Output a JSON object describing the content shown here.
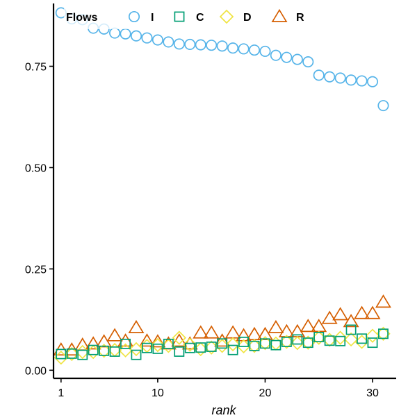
{
  "chart_data": {
    "type": "scatter",
    "xlabel": "rank",
    "ylabel": "",
    "xlim": [
      0.3,
      32.2
    ],
    "ylim": [
      -0.02,
      0.905
    ],
    "xticks": [
      1,
      10,
      20,
      30
    ],
    "yticks": [
      0.0,
      0.25,
      0.5,
      0.75
    ],
    "ytick_labels": [
      "0.00",
      "0.25",
      "0.50",
      "0.75"
    ],
    "legend": {
      "title": "Flows",
      "placement": "top-left"
    },
    "x": [
      1,
      2,
      3,
      4,
      5,
      6,
      7,
      8,
      9,
      10,
      11,
      12,
      13,
      14,
      15,
      16,
      17,
      18,
      19,
      20,
      21,
      22,
      23,
      24,
      25,
      26,
      27,
      28,
      29,
      30,
      31
    ],
    "series": [
      {
        "name": "I",
        "marker": "circle",
        "color": "#56B4E9",
        "values": [
          0.882,
          0.867,
          0.865,
          0.844,
          0.842,
          0.832,
          0.83,
          0.825,
          0.82,
          0.815,
          0.81,
          0.805,
          0.804,
          0.803,
          0.802,
          0.8,
          0.795,
          0.793,
          0.79,
          0.787,
          0.777,
          0.772,
          0.767,
          0.761,
          0.728,
          0.724,
          0.721,
          0.716,
          0.714,
          0.712,
          0.653
        ]
      },
      {
        "name": "C",
        "marker": "square",
        "color": "#009E73",
        "values": [
          0.04,
          0.041,
          0.038,
          0.05,
          0.048,
          0.046,
          0.065,
          0.038,
          0.055,
          0.053,
          0.065,
          0.046,
          0.055,
          0.056,
          0.058,
          0.066,
          0.05,
          0.07,
          0.06,
          0.066,
          0.062,
          0.07,
          0.076,
          0.068,
          0.082,
          0.073,
          0.072,
          0.1,
          0.078,
          0.068,
          0.09
        ]
      },
      {
        "name": "D",
        "marker": "diamond",
        "color": "#F0E442",
        "values": [
          0.031,
          0.04,
          0.045,
          0.045,
          0.048,
          0.05,
          0.049,
          0.052,
          0.06,
          0.062,
          0.06,
          0.08,
          0.063,
          0.052,
          0.056,
          0.06,
          0.064,
          0.059,
          0.06,
          0.067,
          0.066,
          0.07,
          0.067,
          0.068,
          0.08,
          0.075,
          0.08,
          0.076,
          0.07,
          0.085,
          0.09
        ]
      },
      {
        "name": "R",
        "marker": "triangle",
        "color": "#D55E00",
        "values": [
          0.05,
          0.05,
          0.062,
          0.065,
          0.07,
          0.085,
          0.072,
          0.105,
          0.072,
          0.07,
          0.065,
          0.072,
          0.065,
          0.092,
          0.092,
          0.072,
          0.092,
          0.085,
          0.088,
          0.088,
          0.105,
          0.095,
          0.095,
          0.108,
          0.108,
          0.128,
          0.137,
          0.12,
          0.14,
          0.14,
          0.168
        ]
      }
    ]
  }
}
